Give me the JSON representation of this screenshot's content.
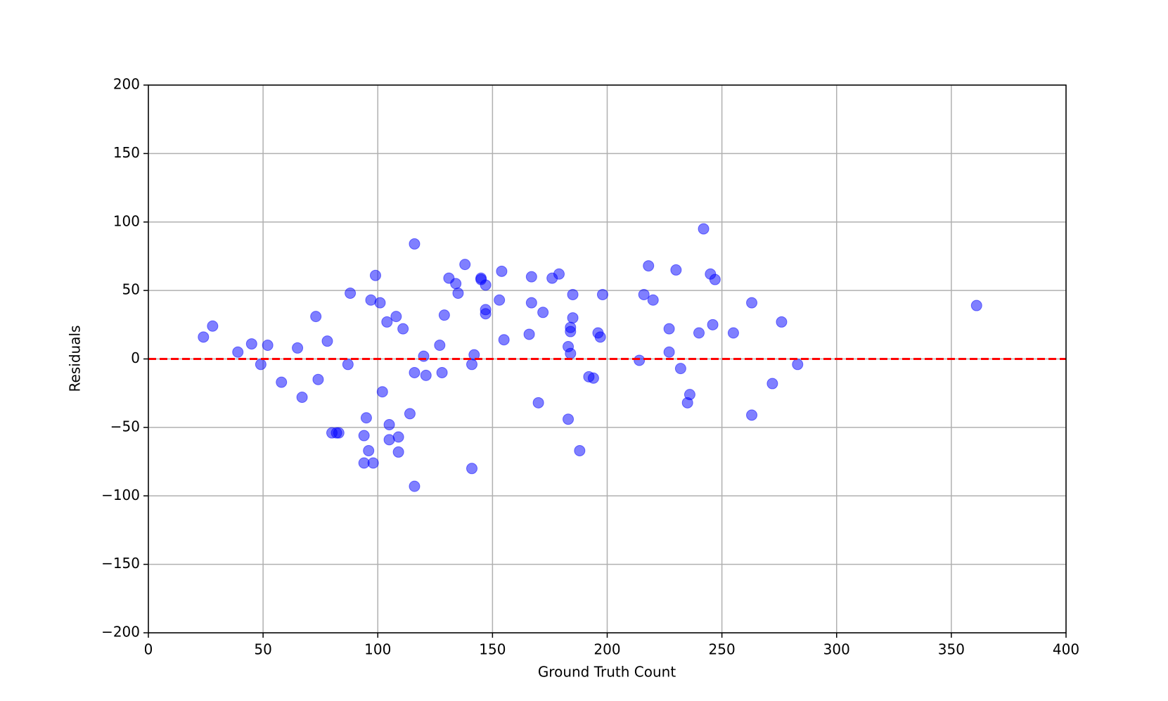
{
  "chart_data": {
    "type": "scatter",
    "xlabel": "Ground Truth Count",
    "ylabel": "Residuals",
    "x": [
      24,
      28,
      39,
      45,
      49,
      52,
      58,
      65,
      67,
      73,
      74,
      78,
      80,
      82,
      83,
      87,
      88,
      95,
      94,
      96,
      94,
      98,
      97,
      99,
      101,
      102,
      104,
      105,
      105,
      108,
      109,
      109,
      111,
      114,
      116,
      116,
      116,
      120,
      121,
      127,
      128,
      129,
      131,
      134,
      135,
      138,
      141,
      141,
      142,
      145,
      145,
      147,
      147,
      147,
      153,
      154,
      155,
      166,
      167,
      167,
      170,
      172,
      176,
      179,
      183,
      183,
      184,
      184,
      184,
      185,
      185,
      188,
      192,
      194,
      196,
      197,
      198,
      214,
      216,
      218,
      220,
      227,
      227,
      230,
      232,
      235,
      236,
      240,
      242,
      245,
      246,
      247,
      255,
      263,
      263,
      272,
      276,
      283,
      361
    ],
    "values": [
      16,
      24,
      5,
      11,
      -4,
      10,
      -17,
      8,
      -28,
      31,
      -15,
      13,
      -54,
      -54,
      -54,
      -4,
      48,
      -43,
      -56,
      -67,
      -76,
      -76,
      43,
      61,
      41,
      -24,
      27,
      -48,
      -59,
      31,
      -57,
      -68,
      22,
      -40,
      84,
      -10,
      -93,
      2,
      -12,
      10,
      -10,
      32,
      59,
      55,
      48,
      69,
      -80,
      -4,
      3,
      59,
      58,
      54,
      36,
      33,
      43,
      64,
      14,
      18,
      60,
      41,
      -32,
      34,
      59,
      62,
      -44,
      9,
      23,
      20,
      4,
      47,
      30,
      -67,
      -13,
      -14,
      19,
      16,
      47,
      -1,
      47,
      68,
      43,
      5,
      22,
      65,
      -7,
      -32,
      -26,
      19,
      95,
      62,
      25,
      58,
      19,
      41,
      -41,
      -18,
      27,
      -4,
      39
    ],
    "color": "#0000ff",
    "opacity": 0.5,
    "hline": 0,
    "hline_color": "#ff0000",
    "xlim": [
      0,
      400
    ],
    "xticks": [
      0,
      50,
      100,
      150,
      200,
      250,
      300,
      350,
      400
    ],
    "ylim": [
      -200,
      200
    ],
    "yticks": [
      {
        "value": -200,
        "label": "−200"
      },
      {
        "value": -150,
        "label": "−150"
      },
      {
        "value": -100,
        "label": "−100"
      },
      {
        "value": -50,
        "label": "−50"
      },
      0,
      50,
      100,
      150,
      200
    ],
    "grid": true
  }
}
